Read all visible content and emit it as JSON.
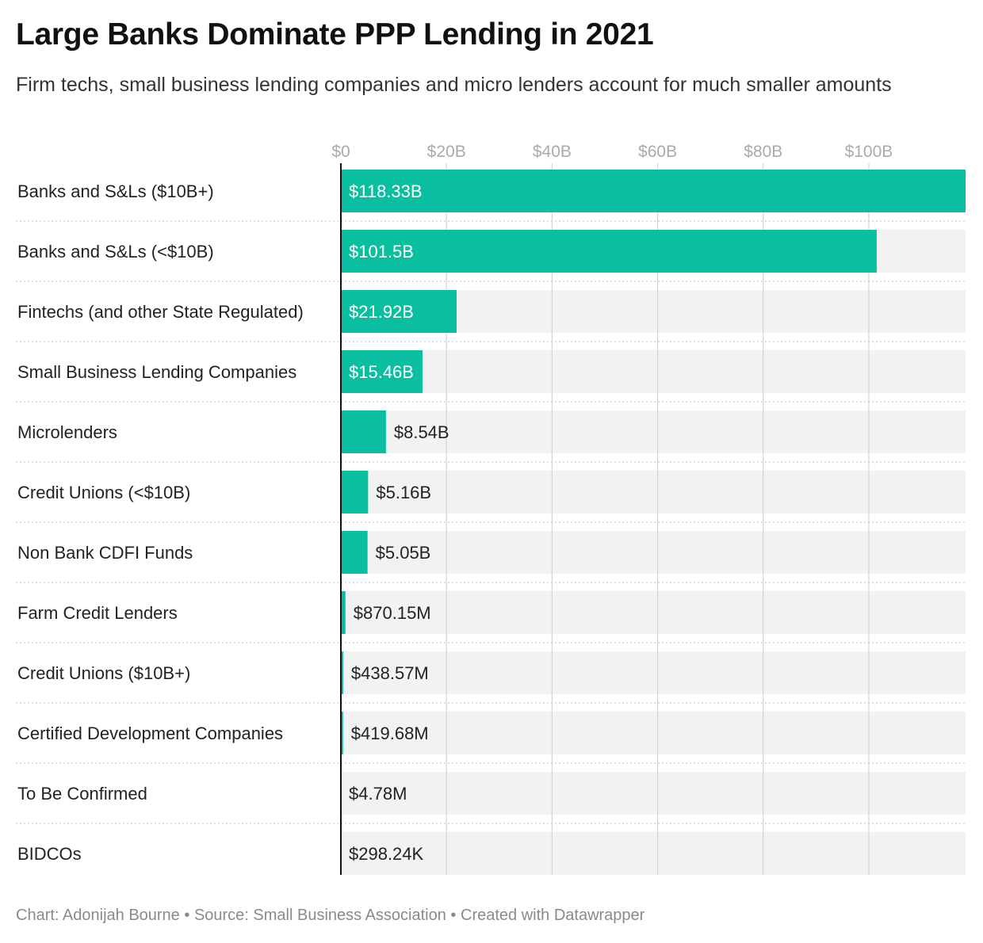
{
  "title": "Large Banks Dominate PPP Lending in 2021",
  "subtitle": "Firm techs, small business lending companies and micro lenders account for much smaller amounts",
  "footer": {
    "chart": "Chart: Adonijah Bourne",
    "sep": " • ",
    "source": "Source: Small Business Association",
    "created": "Created with Datawrapper"
  },
  "colors": {
    "bar": "#0abfa0",
    "track": "#f2f2f2",
    "axis_label": "#aaaaaa"
  },
  "chart_data": {
    "type": "bar",
    "orientation": "horizontal",
    "unit": "billions USD",
    "xlim": [
      0,
      118.33
    ],
    "ticks": [
      {
        "value": 0,
        "label": "$0"
      },
      {
        "value": 20,
        "label": "$20B"
      },
      {
        "value": 40,
        "label": "$40B"
      },
      {
        "value": 60,
        "label": "$60B"
      },
      {
        "value": 80,
        "label": "$80B"
      },
      {
        "value": 100,
        "label": "$100B"
      }
    ],
    "categories": [
      "Banks and S&Ls ($10B+)",
      "Banks and S&Ls (<$10B)",
      "Fintechs (and other State Regulated)",
      "Small Business Lending Companies",
      "Microlenders",
      "Credit Unions (<$10B)",
      "Non Bank CDFI Funds",
      "Farm Credit Lenders",
      "Credit Unions ($10B+)",
      "Certified Development Companies",
      "To Be Confirmed",
      "BIDCOs"
    ],
    "values": [
      118.33,
      101.5,
      21.92,
      15.46,
      8.54,
      5.16,
      5.05,
      0.87015,
      0.43857,
      0.41968,
      0.00478,
      0.00029824
    ],
    "value_labels": [
      "$118.33B",
      "$101.5B",
      "$21.92B",
      "$15.46B",
      "$8.54B",
      "$5.16B",
      "$5.05B",
      "$870.15M",
      "$438.57M",
      "$419.68M",
      "$4.78M",
      "$298.24K"
    ],
    "grid": true
  }
}
